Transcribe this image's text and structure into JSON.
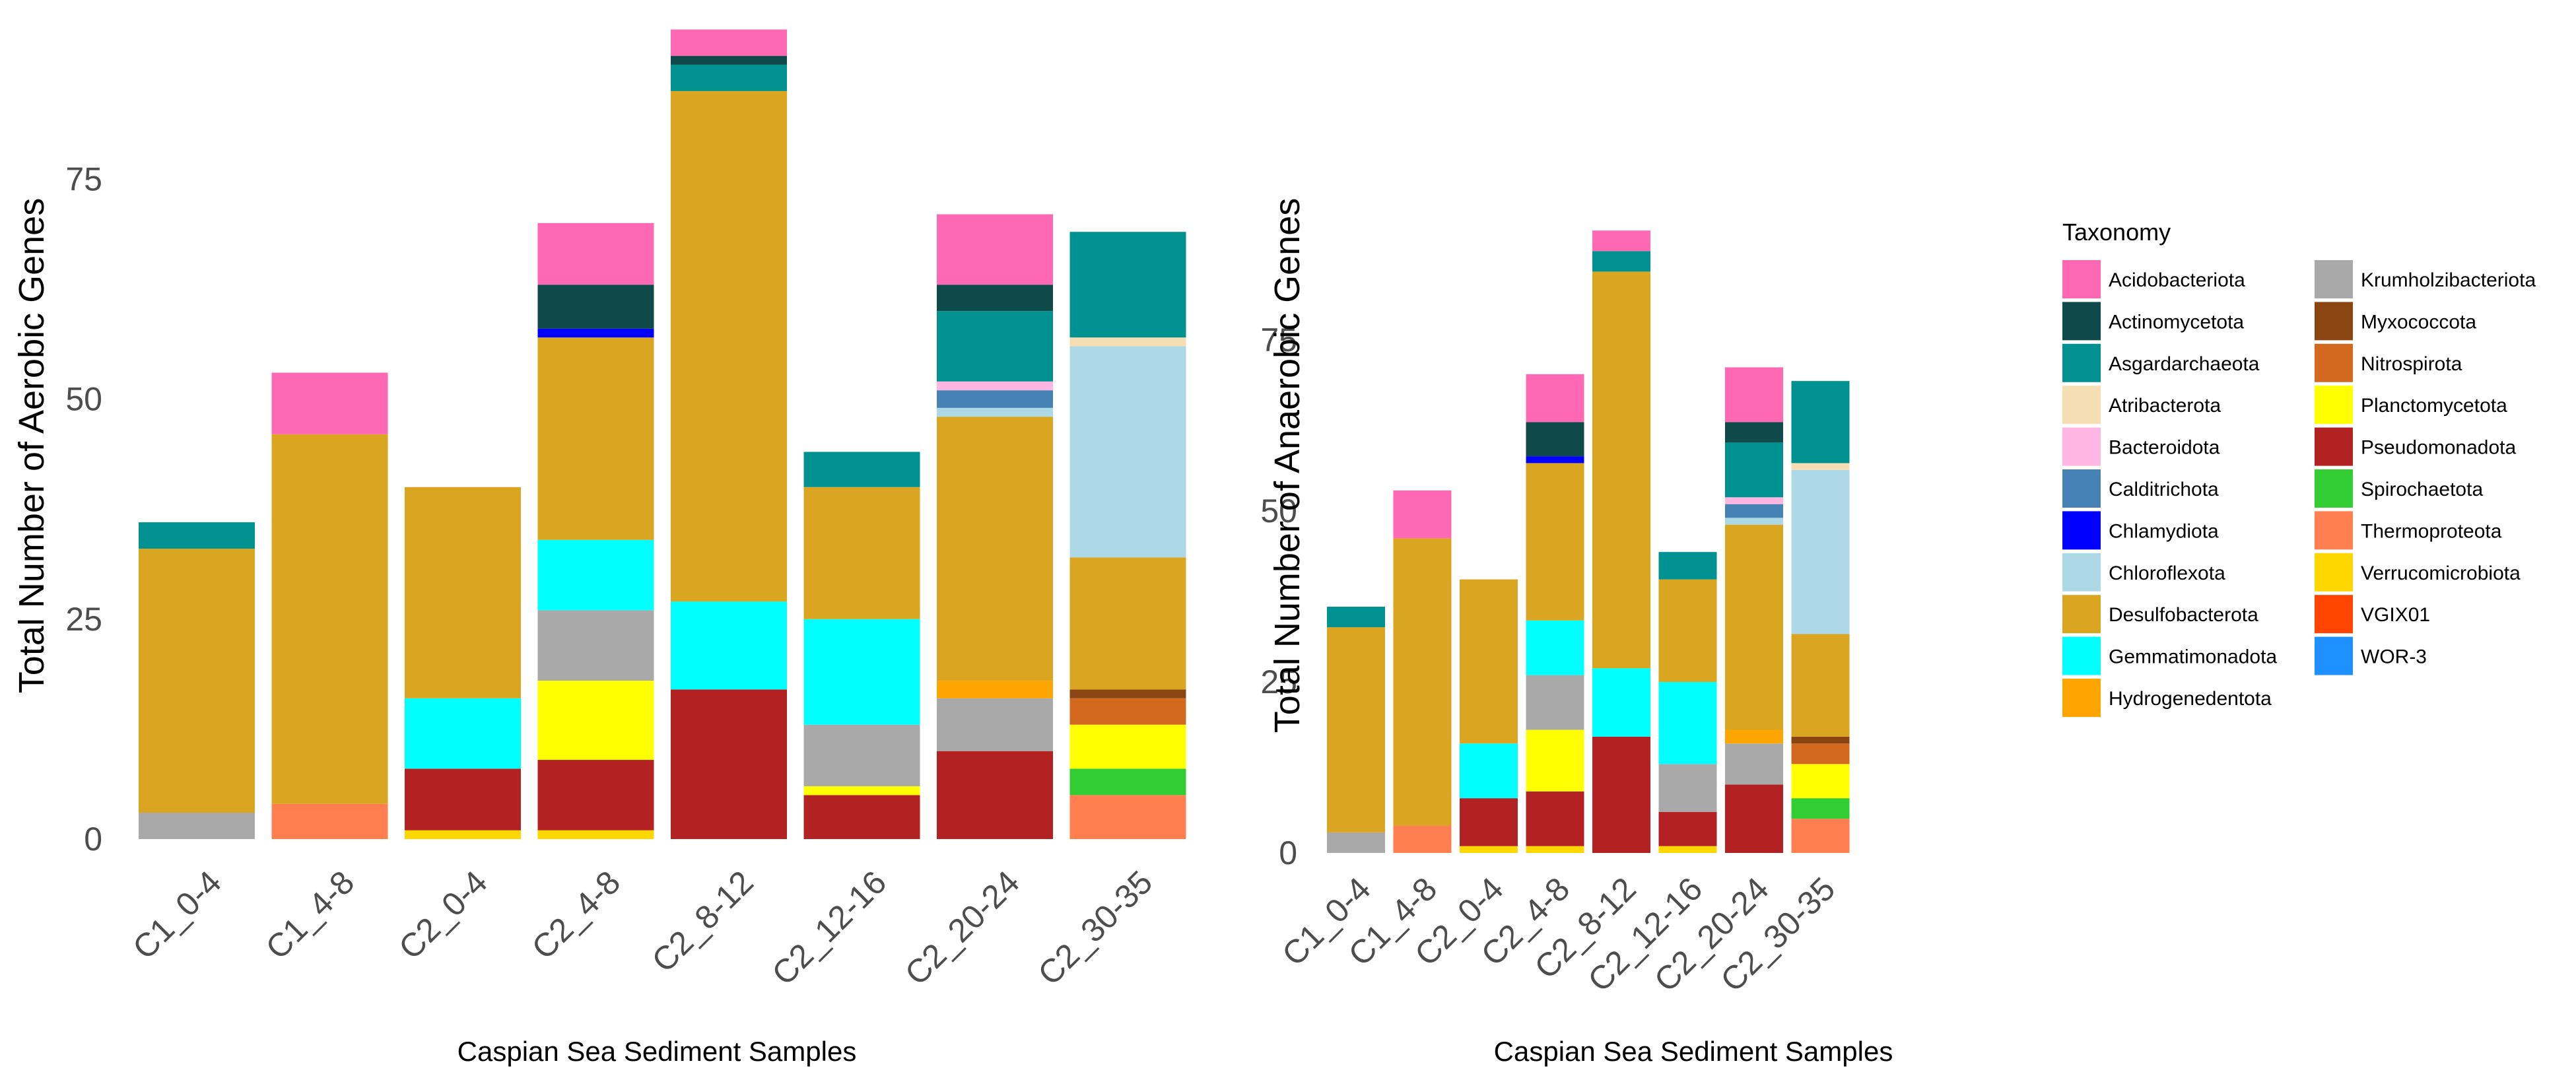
{
  "chart_data": [
    {
      "type": "bar",
      "stacked": true,
      "title": "",
      "xlabel": "Caspian Sea Sediment Samples",
      "ylabel": "Total Number of Aerobic Genes",
      "ylim": [
        0,
        92
      ],
      "yticks": [
        0,
        25,
        50,
        75
      ],
      "grid": false,
      "categories": [
        "C1_0-4",
        "C1_4-8",
        "C2_0-4",
        "C2_4-8",
        "C2_8-12",
        "C2_12-16",
        "C2_20-24",
        "C2_30-35"
      ],
      "series": [
        {
          "name": "Thermoproteota",
          "values": [
            0,
            4,
            0,
            0,
            0,
            0,
            0,
            5
          ]
        },
        {
          "name": "Spirochaetota",
          "values": [
            0,
            0,
            0,
            0,
            0,
            0,
            0,
            3
          ]
        },
        {
          "name": "Verrucomicrobiota",
          "values": [
            0,
            0,
            1,
            1,
            0,
            0,
            0,
            0
          ]
        },
        {
          "name": "Pseudomonadota",
          "values": [
            0,
            0,
            7,
            8,
            17,
            5,
            10,
            0
          ]
        },
        {
          "name": "Planctomycetota",
          "values": [
            0,
            0,
            0,
            9,
            0,
            1,
            0,
            5
          ]
        },
        {
          "name": "Nitrospirota",
          "values": [
            0,
            0,
            0,
            0,
            0,
            0,
            0,
            3
          ]
        },
        {
          "name": "Myxococcota",
          "values": [
            0,
            0,
            0,
            0,
            0,
            0,
            0,
            1
          ]
        },
        {
          "name": "Krumholzibacteriota",
          "values": [
            3,
            0,
            0,
            8,
            0,
            7,
            6,
            0
          ]
        },
        {
          "name": "Hydrogenedentota",
          "values": [
            0,
            0,
            0,
            0,
            0,
            0,
            2,
            0
          ]
        },
        {
          "name": "Gemmatimonadota",
          "values": [
            0,
            0,
            8,
            8,
            10,
            12,
            0,
            0
          ]
        },
        {
          "name": "Desulfobacterota",
          "values": [
            30,
            42,
            24,
            23,
            58,
            15,
            30,
            15
          ]
        },
        {
          "name": "Chloroflexota",
          "values": [
            0,
            0,
            0,
            0,
            0,
            0,
            1,
            24
          ]
        },
        {
          "name": "Chlamydiota",
          "values": [
            0,
            0,
            0,
            1,
            0,
            0,
            0,
            0
          ]
        },
        {
          "name": "Calditrichota",
          "values": [
            0,
            0,
            0,
            0,
            0,
            0,
            2,
            0
          ]
        },
        {
          "name": "Bacteroidota",
          "values": [
            0,
            0,
            0,
            0,
            0,
            0,
            1,
            0
          ]
        },
        {
          "name": "Atribacterota",
          "values": [
            0,
            0,
            0,
            0,
            0,
            0,
            0,
            1
          ]
        },
        {
          "name": "Asgardarchaeota",
          "values": [
            3,
            0,
            0,
            0,
            3,
            4,
            8,
            12
          ]
        },
        {
          "name": "Actinomycetota",
          "values": [
            0,
            0,
            0,
            5,
            1,
            0,
            3,
            0
          ]
        },
        {
          "name": "Acidobacteriota",
          "values": [
            0,
            7,
            0,
            7,
            3,
            0,
            8,
            0
          ]
        }
      ]
    },
    {
      "type": "bar",
      "stacked": true,
      "title": "",
      "xlabel": "Caspian Sea Sediment Samples",
      "ylabel": "Total Number of Anaerobic Genes",
      "ylim": [
        0,
        95
      ],
      "yticks": [
        0,
        25,
        50,
        75
      ],
      "grid": false,
      "categories": [
        "C1_0-4",
        "C1_4-8",
        "C2_0-4",
        "C2_4-8",
        "C2_8-12",
        "C2_12-16",
        "C2_20-24",
        "C2_30-35"
      ],
      "series": [
        {
          "name": "Thermoproteota",
          "values": [
            0,
            4,
            0,
            0,
            0,
            0,
            0,
            5
          ]
        },
        {
          "name": "Spirochaetota",
          "values": [
            0,
            0,
            0,
            0,
            0,
            0,
            0,
            3
          ]
        },
        {
          "name": "Verrucomicrobiota",
          "values": [
            0,
            0,
            1,
            1,
            0,
            1,
            0,
            0
          ]
        },
        {
          "name": "Pseudomonadota",
          "values": [
            0,
            0,
            7,
            8,
            17,
            5,
            10,
            0
          ]
        },
        {
          "name": "Planctomycetota",
          "values": [
            0,
            0,
            0,
            9,
            0,
            0,
            0,
            5
          ]
        },
        {
          "name": "Nitrospirota",
          "values": [
            0,
            0,
            0,
            0,
            0,
            0,
            0,
            3
          ]
        },
        {
          "name": "Myxococcota",
          "values": [
            0,
            0,
            0,
            0,
            0,
            0,
            0,
            1
          ]
        },
        {
          "name": "Krumholzibacteriota",
          "values": [
            3,
            0,
            0,
            8,
            0,
            7,
            6,
            0
          ]
        },
        {
          "name": "Hydrogenedentota",
          "values": [
            0,
            0,
            0,
            0,
            0,
            0,
            2,
            0
          ]
        },
        {
          "name": "Gemmatimonadota",
          "values": [
            0,
            0,
            8,
            8,
            10,
            12,
            0,
            0
          ]
        },
        {
          "name": "Desulfobacterota",
          "values": [
            30,
            42,
            24,
            23,
            58,
            15,
            30,
            15
          ]
        },
        {
          "name": "Chloroflexota",
          "values": [
            0,
            0,
            0,
            0,
            0,
            0,
            1,
            24
          ]
        },
        {
          "name": "Chlamydiota",
          "values": [
            0,
            0,
            0,
            1,
            0,
            0,
            0,
            0
          ]
        },
        {
          "name": "Calditrichota",
          "values": [
            0,
            0,
            0,
            0,
            0,
            0,
            2,
            0
          ]
        },
        {
          "name": "Bacteroidota",
          "values": [
            0,
            0,
            0,
            0,
            0,
            0,
            1,
            0
          ]
        },
        {
          "name": "Atribacterota",
          "values": [
            0,
            0,
            0,
            0,
            0,
            0,
            0,
            1
          ]
        },
        {
          "name": "Asgardarchaeota",
          "values": [
            3,
            0,
            0,
            0,
            3,
            4,
            8,
            12
          ]
        },
        {
          "name": "Actinomycetota",
          "values": [
            0,
            0,
            0,
            5,
            0,
            0,
            3,
            0
          ]
        },
        {
          "name": "Acidobacteriota",
          "values": [
            0,
            7,
            0,
            7,
            3,
            0,
            8,
            0
          ]
        }
      ]
    }
  ],
  "legend": {
    "title": "Taxonomy",
    "placement": "right",
    "columns": [
      [
        "Acidobacteriota",
        "Actinomycetota",
        "Asgardarchaeota",
        "Atribacterota",
        "Bacteroidota",
        "Calditrichota",
        "Chlamydiota",
        "Chloroflexota",
        "Desulfobacterota",
        "Gemmatimonadota",
        "Hydrogenedentota"
      ],
      [
        "Krumholzibacteriota",
        "Myxococcota",
        "Nitrospirota",
        "Planctomycetota",
        "Pseudomonadota",
        "Spirochaetota",
        "Thermoproteota",
        "Verrucomicrobiota",
        "VGIX01",
        "WOR-3"
      ]
    ]
  },
  "colors": {
    "Acidobacteriota": "#ff69b4",
    "Actinomycetota": "#0f4a4a",
    "Asgardarchaeota": "#009191",
    "Atribacterota": "#f5deb3",
    "Bacteroidota": "#ffb6e1",
    "Calditrichota": "#4682b4",
    "Chlamydiota": "#0000ff",
    "Chloroflexota": "#add8e6",
    "Desulfobacterota": "#daa520",
    "Gemmatimonadota": "#00ffff",
    "Hydrogenedentota": "#ffa500",
    "Krumholzibacteriota": "#a9a9a9",
    "Myxococcota": "#8b4513",
    "Nitrospirota": "#d2691e",
    "Planctomycetota": "#ffff00",
    "Pseudomonadota": "#b22222",
    "Spirochaetota": "#32cd32",
    "Thermoproteota": "#ff7f50",
    "Verrucomicrobiota": "#ffd700",
    "VGIX01": "#ff4500",
    "WOR-3": "#1e90ff"
  }
}
